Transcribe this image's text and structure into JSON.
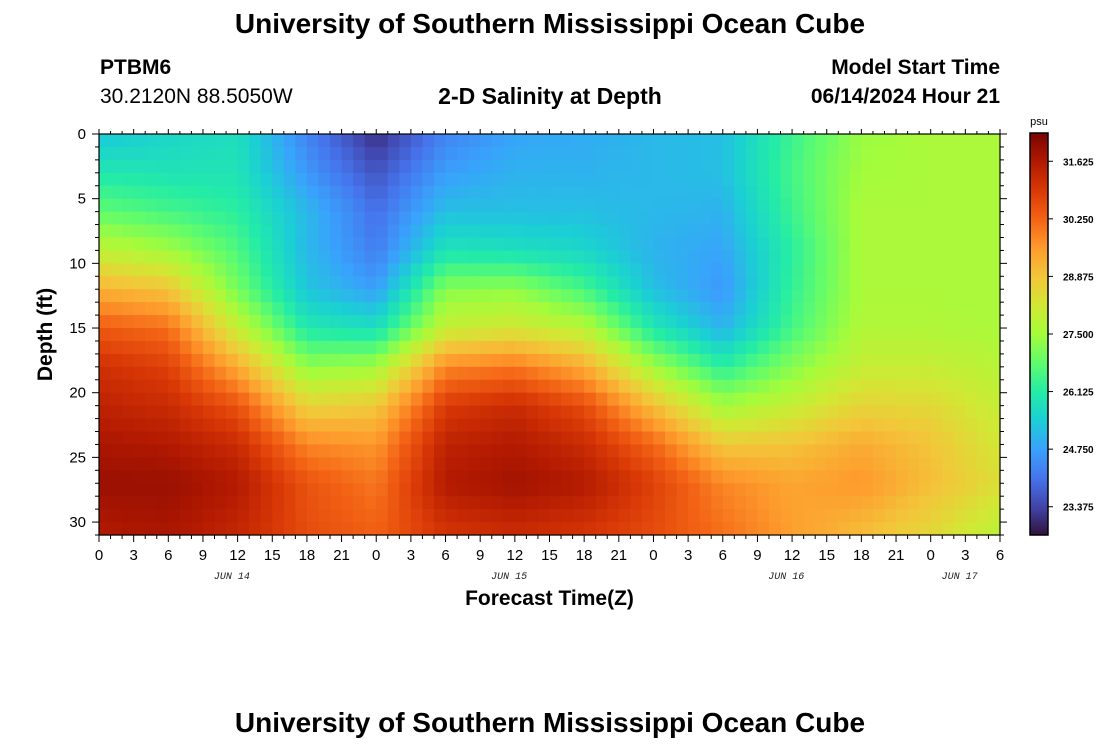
{
  "header": {
    "title": "University of Southern Mississippi Ocean Cube",
    "station": "PTBM6",
    "coords": "30.2120N  88.5050W",
    "subtitle": "2-D Salinity at Depth",
    "start_label": "Model Start Time",
    "start_value": "06/14/2024 Hour 21"
  },
  "footer": {
    "title": "University of Southern Mississippi Ocean Cube"
  },
  "chart_data": {
    "type": "heatmap",
    "xlabel": "Forecast Time(Z)",
    "ylabel": "Depth (ft)",
    "x_range_hours": [
      0,
      78
    ],
    "x_tick_labels": [
      "0",
      "3",
      "6",
      "9",
      "12",
      "15",
      "18",
      "21",
      "0",
      "3",
      "6",
      "9",
      "12",
      "15",
      "18",
      "21",
      "0",
      "3",
      "6",
      "9",
      "12",
      "15",
      "18",
      "21",
      "0",
      "3",
      "6"
    ],
    "x_date_labels": [
      {
        "label": "JUN 14",
        "hour": 11.5
      },
      {
        "label": "JUN 15",
        "hour": 35.5
      },
      {
        "label": "JUN 16",
        "hour": 59.5
      },
      {
        "label": "JUN 17",
        "hour": 74.5
      }
    ],
    "ylim": [
      31,
      0
    ],
    "y_ticks": [
      0,
      5,
      10,
      15,
      20,
      25,
      30
    ],
    "colorbar": {
      "unit": "psu",
      "range": [
        22.7,
        32.3
      ],
      "tick_labels": [
        "31.625",
        "30.250",
        "28.875",
        "27.500",
        "26.125",
        "24.750",
        "23.375"
      ],
      "tick_values": [
        31.625,
        30.25,
        28.875,
        27.5,
        26.125,
        24.75,
        23.375
      ],
      "colormap": [
        "#30123b",
        "#4145ab",
        "#4675ed",
        "#39a2fc",
        "#1bcfd4",
        "#24eca6",
        "#61fc6c",
        "#a4fc3b",
        "#d1e834",
        "#f3c63a",
        "#fe9b2d",
        "#f36315",
        "#d93806",
        "#b11901",
        "#7a0403"
      ]
    },
    "depth_profile_ft": [
      0,
      3,
      6,
      9,
      12,
      15,
      18,
      21,
      24,
      27,
      31
    ],
    "time_profile_hours": [
      0,
      6,
      12,
      18,
      24,
      30,
      36,
      42,
      48,
      54,
      60,
      66,
      72,
      78
    ],
    "salinity_psu": [
      [
        25.3,
        25.6,
        25.8,
        24.3,
        23.1,
        24.3,
        24.8,
        24.9,
        25.1,
        25.2,
        26.4,
        27.4,
        27.6,
        27.6
      ],
      [
        26.0,
        25.9,
        25.9,
        24.6,
        23.6,
        24.7,
        25.0,
        25.0,
        25.1,
        25.2,
        26.5,
        27.5,
        27.6,
        27.6
      ],
      [
        26.8,
        26.5,
        26.2,
        25.1,
        24.0,
        25.2,
        25.2,
        25.2,
        25.1,
        25.0,
        26.4,
        27.6,
        27.6,
        27.6
      ],
      [
        27.9,
        27.5,
        26.6,
        25.1,
        24.2,
        25.9,
        25.8,
        25.6,
        25.0,
        24.8,
        26.2,
        27.6,
        27.6,
        27.6
      ],
      [
        29.2,
        28.9,
        27.0,
        25.3,
        24.7,
        27.2,
        27.3,
        26.5,
        25.2,
        24.6,
        26.3,
        27.6,
        27.6,
        27.6
      ],
      [
        30.4,
        30.1,
        28.0,
        26.0,
        25.8,
        28.0,
        28.2,
        27.8,
        26.0,
        25.0,
        26.5,
        27.7,
        27.7,
        27.6
      ],
      [
        31.1,
        30.8,
        29.3,
        27.3,
        27.5,
        29.8,
        30.0,
        29.3,
        27.5,
        26.2,
        27.2,
        28.0,
        28.0,
        27.8
      ],
      [
        31.4,
        31.2,
        30.5,
        28.6,
        28.8,
        30.9,
        31.2,
        30.6,
        29.0,
        27.5,
        28.0,
        28.6,
        28.5,
        28.0
      ],
      [
        31.7,
        31.6,
        31.2,
        29.8,
        29.6,
        31.4,
        31.6,
        31.2,
        30.2,
        28.8,
        28.9,
        29.3,
        28.9,
        28.2
      ],
      [
        31.9,
        31.9,
        31.6,
        30.5,
        30.0,
        31.6,
        31.8,
        31.6,
        30.8,
        29.8,
        29.4,
        29.6,
        29.0,
        28.4
      ],
      [
        31.6,
        31.7,
        31.3,
        30.6,
        30.3,
        31.0,
        31.2,
        31.0,
        30.6,
        30.1,
        29.5,
        29.0,
        28.5,
        27.8
      ]
    ]
  }
}
